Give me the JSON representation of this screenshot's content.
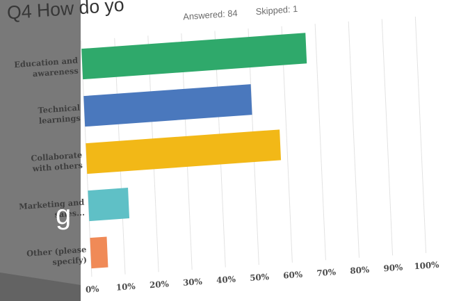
{
  "slide": {
    "title_fragment": "Q4 How do yo",
    "overlay_fragment": "g"
  },
  "chart_data": {
    "type": "bar",
    "orientation": "horizontal",
    "title": "Q4 How do yo",
    "answered_label": "Answered: 84",
    "skipped_label": "Skipped: 1",
    "categories": [
      "Education and awareness",
      "Technical learnings",
      "Collaborate with others",
      "Marketing and sales...",
      "Other (please specify)"
    ],
    "category_lines": [
      [
        "Education and",
        "awareness"
      ],
      [
        "Technical",
        "learnings"
      ],
      [
        "Collaborate",
        "with others"
      ],
      [
        "Marketing and",
        "sales..."
      ],
      [
        "Other (please",
        "specify)"
      ]
    ],
    "values": [
      67,
      50,
      58,
      12,
      5
    ],
    "value_unit": "%",
    "xlim": [
      0,
      100
    ],
    "ticks": [
      0,
      10,
      20,
      30,
      40,
      50,
      60,
      70,
      80,
      90,
      100
    ],
    "tick_labels": [
      "0%",
      "10%",
      "20%",
      "30%",
      "40%",
      "50%",
      "60%",
      "70%",
      "80%",
      "90%",
      "100%"
    ],
    "grid": true,
    "legend": "none",
    "colors": [
      "#2fa96b",
      "#4a78bd",
      "#f2b817",
      "#5fc0c6",
      "#f08a57"
    ]
  },
  "theme": {
    "overlay_color": "#3a3a3a",
    "background": "#ffffff",
    "grid_color": "#e2e2e2"
  }
}
